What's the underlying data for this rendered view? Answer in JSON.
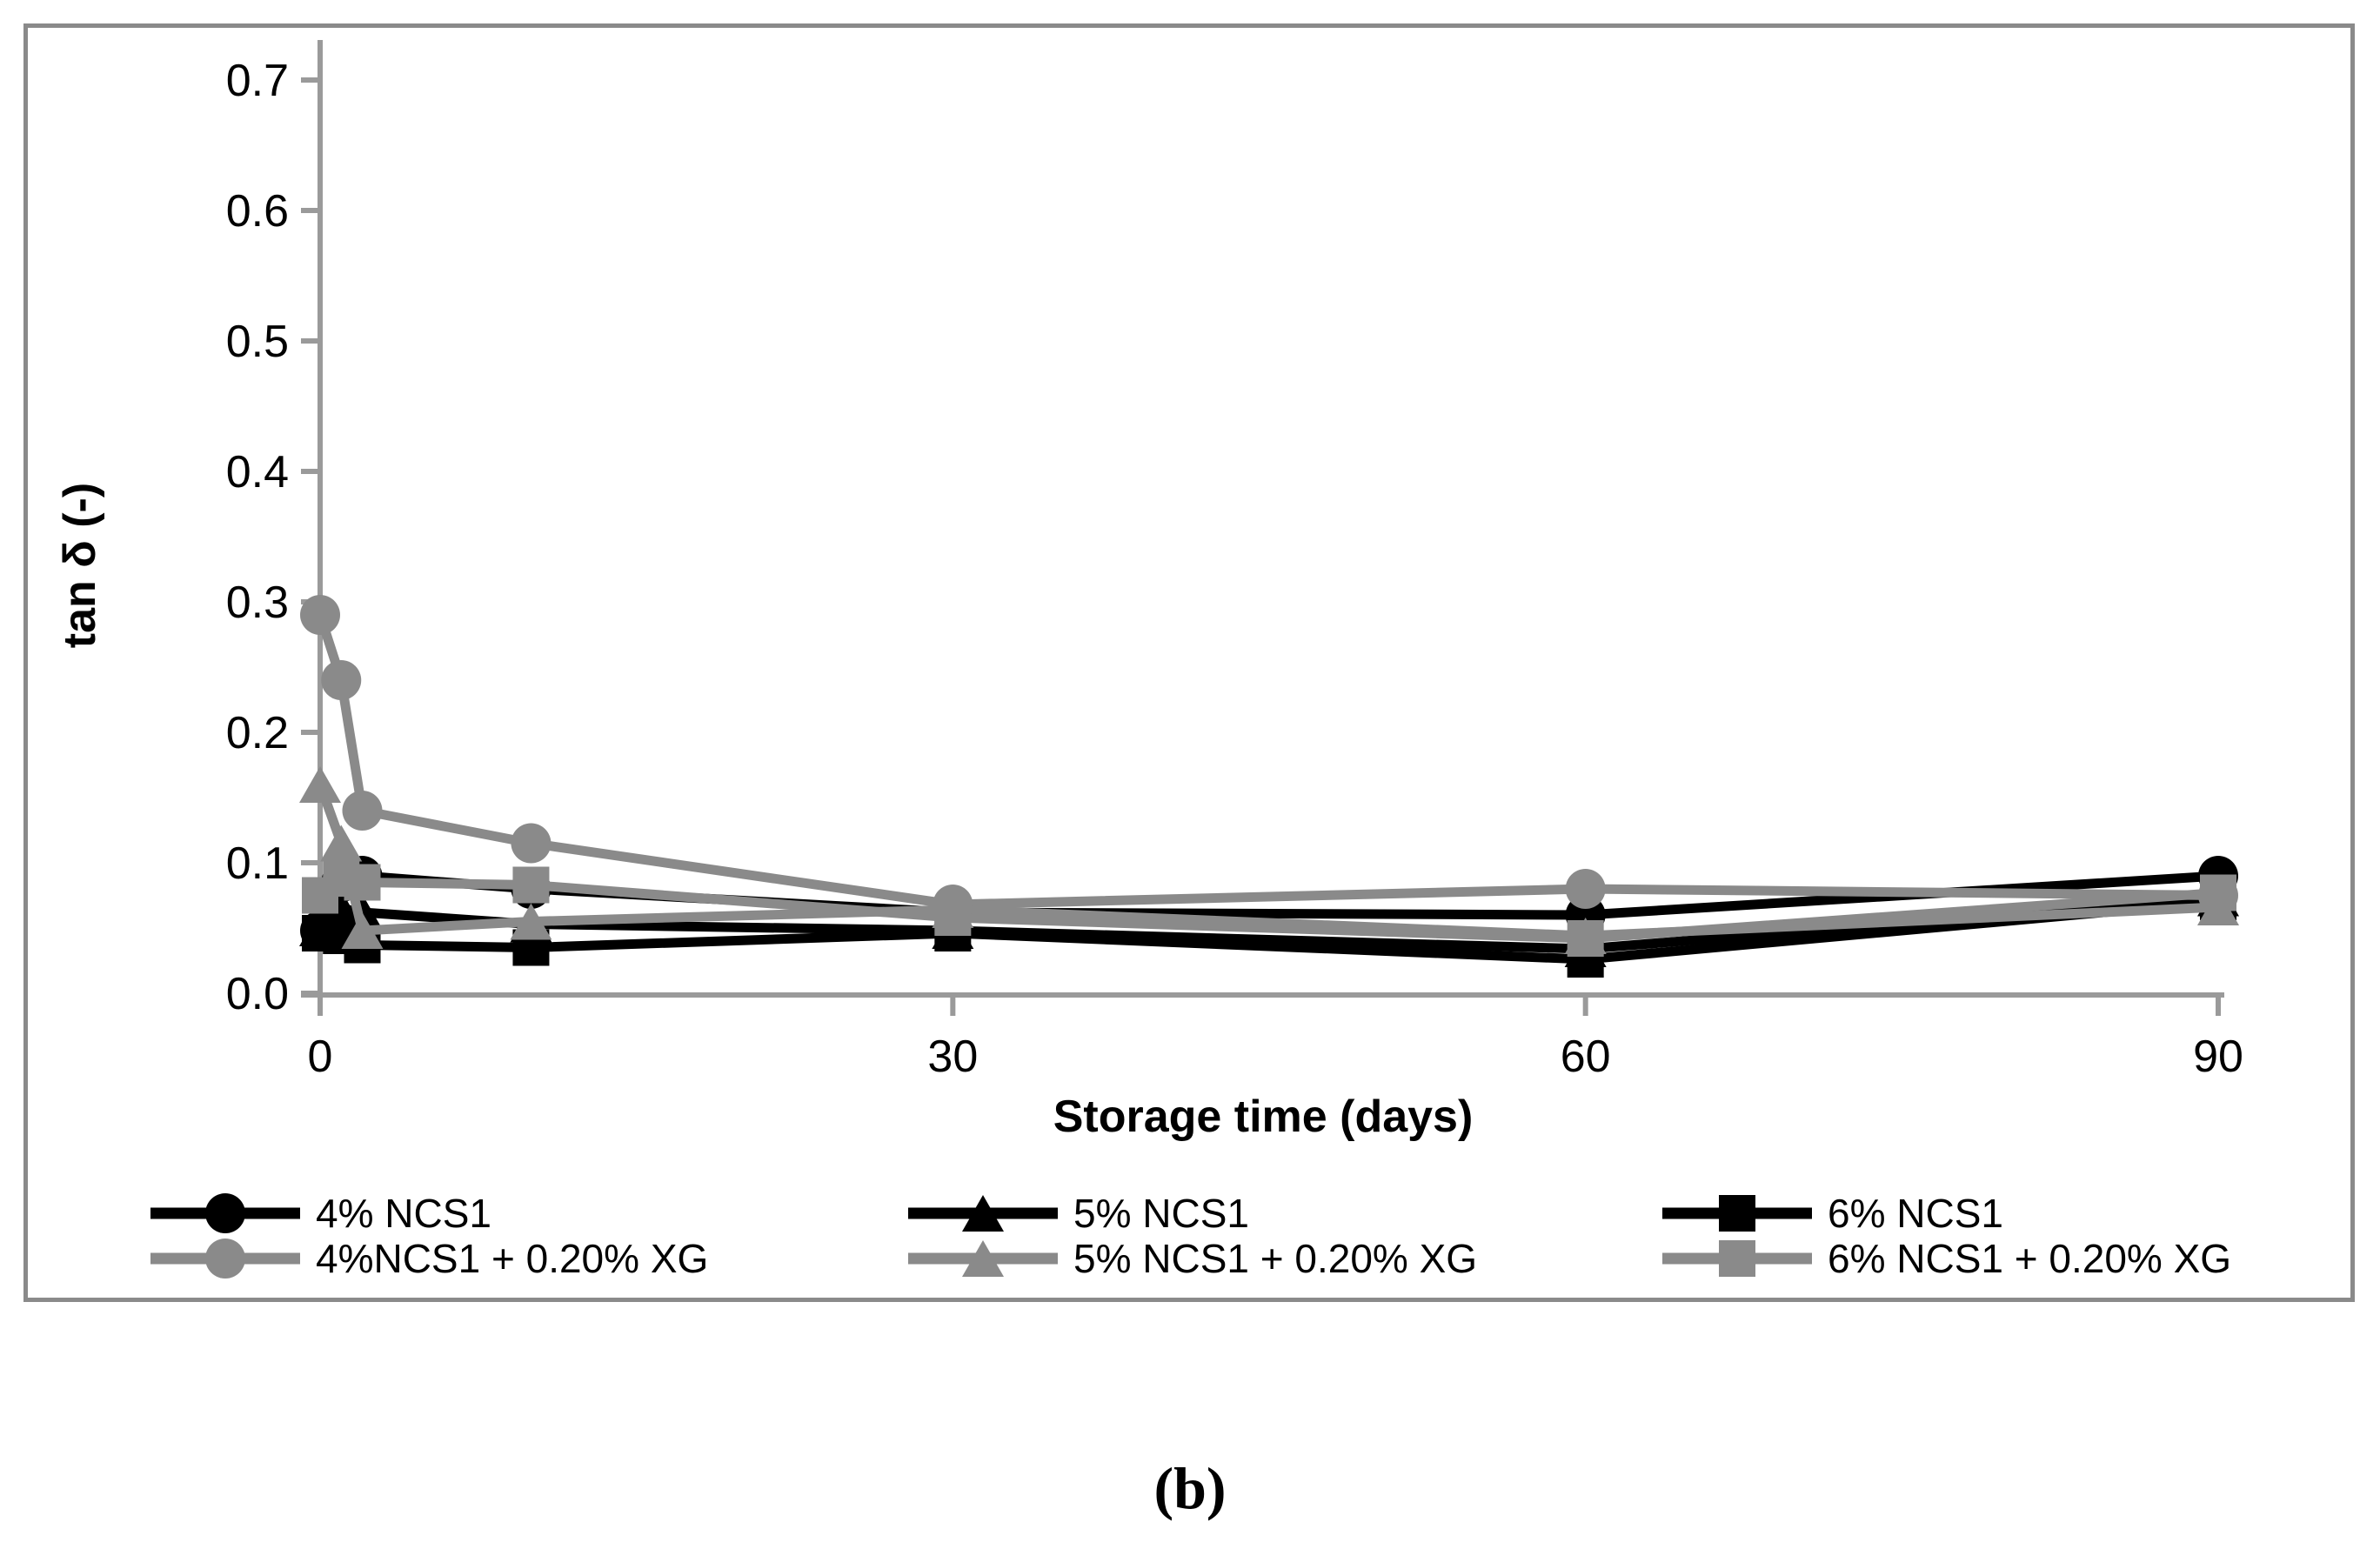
{
  "figure": {
    "caption": "(b)",
    "border_color": "#8a8a8a",
    "background": "#ffffff"
  },
  "chart_data": {
    "type": "line",
    "title": "",
    "xlabel": "Storage time (days)",
    "ylabel": "tan δ (-)",
    "x": [
      0,
      1,
      2,
      10,
      30,
      60,
      90
    ],
    "xlim": [
      0,
      90
    ],
    "ylim": [
      0.0,
      0.7
    ],
    "x_tick_values": [
      0,
      30,
      60,
      90
    ],
    "x_tick_labels": [
      "0",
      "30",
      "60",
      "90"
    ],
    "y_tick_values": [
      0.0,
      0.1,
      0.2,
      0.3,
      0.4,
      0.5,
      0.6,
      0.7
    ],
    "y_tick_labels": [
      "0.0",
      "0.1",
      "0.2",
      "0.3",
      "0.4",
      "0.5",
      "0.6",
      "0.7"
    ],
    "grid": false,
    "legend_position": "bottom",
    "legend_rows": [
      [
        0,
        1,
        2
      ],
      [
        3,
        4,
        5
      ]
    ],
    "axis_color": "#9a9a9a",
    "series": [
      {
        "name": "4% NCS1",
        "color": "#000000",
        "marker": "circle",
        "values": [
          0.048,
          0.085,
          0.09,
          0.08,
          0.062,
          0.06,
          0.09
        ]
      },
      {
        "name": "5% NCS1",
        "color": "#000000",
        "marker": "triangle",
        "values": [
          0.05,
          0.065,
          0.062,
          0.053,
          0.048,
          0.034,
          0.073
        ]
      },
      {
        "name": "6% NCS1",
        "color": "#000000",
        "marker": "square",
        "values": [
          0.046,
          0.044,
          0.037,
          0.035,
          0.046,
          0.026,
          0.07
        ]
      },
      {
        "name": "4%NCS1 + 0.20% XG",
        "color": "#8a8a8a",
        "marker": "circle",
        "values": [
          0.29,
          0.24,
          0.14,
          0.115,
          0.068,
          0.08,
          0.075
        ]
      },
      {
        "name": "5% NCS1 + 0.20% XG",
        "color": "#8a8a8a",
        "marker": "triangle",
        "values": [
          0.16,
          0.115,
          0.048,
          0.055,
          0.064,
          0.044,
          0.066
        ]
      },
      {
        "name": "6% NCS1 + 0.20% XG",
        "color": "#8a8a8a",
        "marker": "square",
        "values": [
          0.075,
          0.088,
          0.085,
          0.083,
          0.058,
          0.042,
          0.077
        ]
      }
    ]
  }
}
